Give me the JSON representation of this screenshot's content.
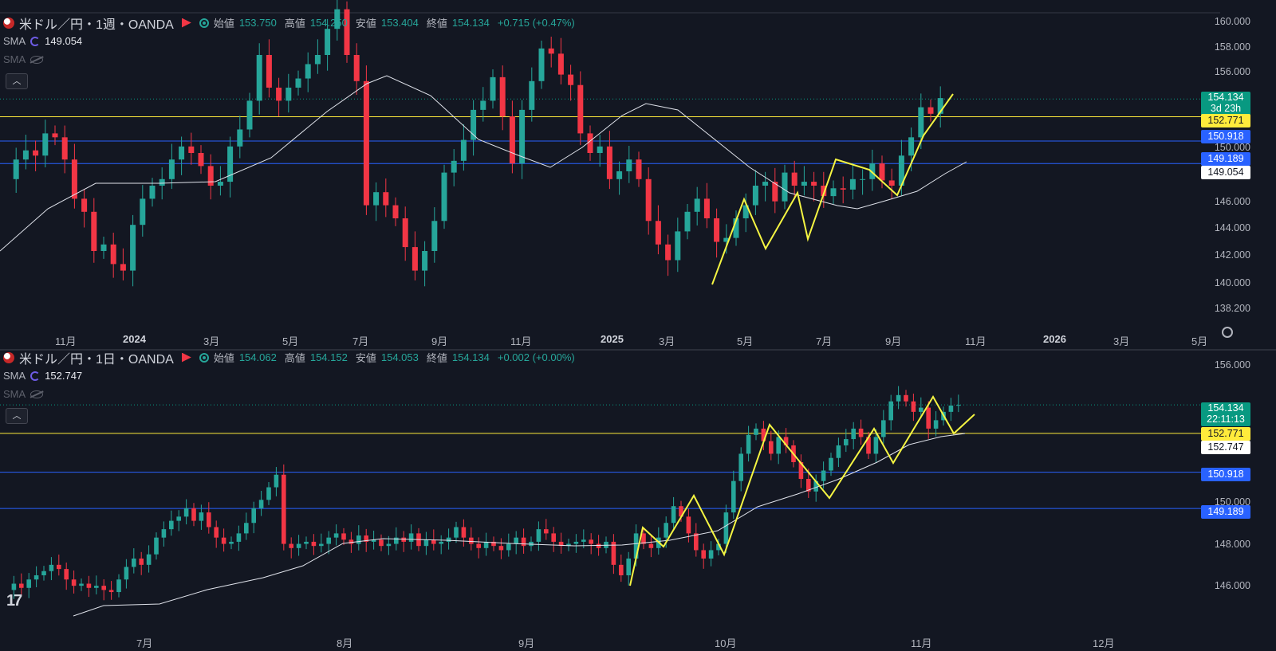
{
  "pane1": {
    "symbol": "米ドル／円・1週・OANDA",
    "ohlc": {
      "open_label": "始値",
      "open": "153.750",
      "high_label": "高値",
      "high": "154.250",
      "low_label": "安値",
      "low": "153.404",
      "close_label": "終値",
      "close": "154.134",
      "change": "+0.715 (+0.47%)"
    },
    "indicators": [
      {
        "name": "SMA",
        "value": "149.054",
        "visible": true
      },
      {
        "name": "SMA",
        "value": "",
        "visible": false
      }
    ],
    "collapse_icon": "chevron-up-icon",
    "price_axis": [
      "160.000",
      "158.000",
      "156.000",
      "154.000",
      "150.000",
      "146.000",
      "144.000",
      "142.000",
      "140.000",
      "138.200"
    ],
    "price_tags": [
      {
        "text": "154.134",
        "sub": "3d 23h",
        "bg": "#089981",
        "fg": "#ffffff"
      },
      {
        "text": "152.771",
        "bg": "#ffeb3b",
        "fg": "#131722"
      },
      {
        "text": "150.918",
        "bg": "#2962ff",
        "fg": "#ffffff"
      },
      {
        "text": "149.189",
        "bg": "#2962ff",
        "fg": "#ffffff"
      },
      {
        "text": "149.054",
        "bg": "#ffffff",
        "fg": "#131722"
      }
    ],
    "time_axis": [
      {
        "label": "11月",
        "bold": false
      },
      {
        "label": "2024",
        "bold": true
      },
      {
        "label": "3月",
        "bold": false
      },
      {
        "label": "5月",
        "bold": false
      },
      {
        "label": "7月",
        "bold": false
      },
      {
        "label": "9月",
        "bold": false
      },
      {
        "label": "11月",
        "bold": false
      },
      {
        "label": "2025",
        "bold": true
      },
      {
        "label": "3月",
        "bold": false
      },
      {
        "label": "5月",
        "bold": false
      },
      {
        "label": "7月",
        "bold": false
      },
      {
        "label": "9月",
        "bold": false
      },
      {
        "label": "11月",
        "bold": false
      },
      {
        "label": "2026",
        "bold": true
      },
      {
        "label": "3月",
        "bold": false
      },
      {
        "label": "5月",
        "bold": false
      }
    ],
    "settings_icon": "gear-icon"
  },
  "pane2": {
    "symbol": "米ドル／円・1日・OANDA",
    "ohlc": {
      "open_label": "始値",
      "open": "154.062",
      "high_label": "高値",
      "high": "154.152",
      "low_label": "安値",
      "low": "154.053",
      "close_label": "終値",
      "close": "154.134",
      "change": "+0.002 (+0.00%)"
    },
    "indicators": [
      {
        "name": "SMA",
        "value": "152.747",
        "visible": true
      },
      {
        "name": "SMA",
        "value": "",
        "visible": false
      }
    ],
    "collapse_icon": "chevron-up-icon",
    "price_axis": [
      "156.000",
      "150.000",
      "148.000",
      "146.000"
    ],
    "price_tags": [
      {
        "text": "154.134",
        "sub": "22:11:13",
        "bg": "#089981",
        "fg": "#ffffff"
      },
      {
        "text": "152.771",
        "bg": "#ffeb3b",
        "fg": "#131722"
      },
      {
        "text": "152.747",
        "bg": "#ffffff",
        "fg": "#131722"
      },
      {
        "text": "150.918",
        "bg": "#2962ff",
        "fg": "#ffffff"
      },
      {
        "text": "149.189",
        "bg": "#2962ff",
        "fg": "#ffffff"
      }
    ],
    "time_axis": [
      {
        "label": "7月"
      },
      {
        "label": "8月"
      },
      {
        "label": "9月"
      },
      {
        "label": "10月"
      },
      {
        "label": "11月"
      },
      {
        "label": "12月"
      }
    ],
    "logo_icon": "tradingview-logo-icon",
    "logo_text": "17"
  },
  "colors": {
    "up": "#26a69a",
    "down": "#f23645",
    "sma": "#e0e3eb",
    "hline_yellow": "#ffeb3b",
    "hline_blue": "#2962ff",
    "drawing": "#f5f542",
    "bg": "#131722"
  }
}
